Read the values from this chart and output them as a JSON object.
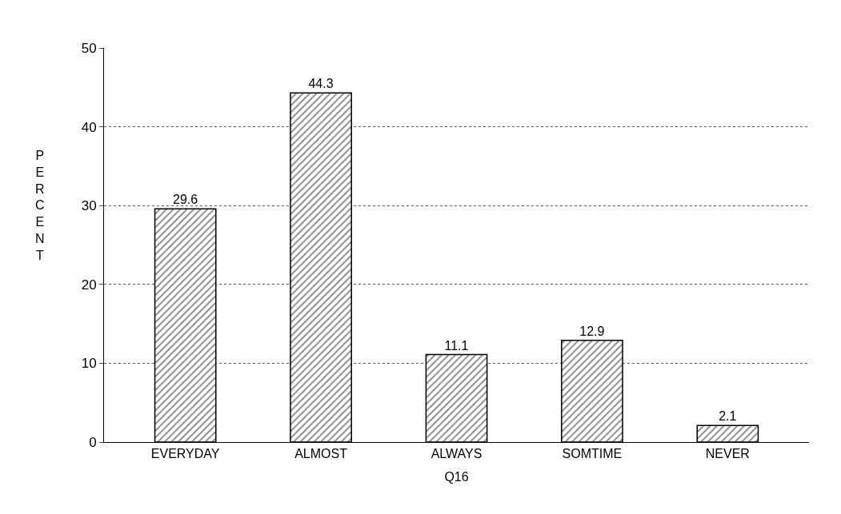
{
  "chart_data": {
    "type": "bar",
    "xlabel": "Q16",
    "ylabel": "PERCENT",
    "categories": [
      "EVERYDAY",
      "ALMOST",
      "ALWAYS",
      "SOMTIME",
      "NEVER"
    ],
    "values": [
      29.6,
      44.3,
      11.1,
      12.9,
      2.1
    ],
    "color": "#000000",
    "data_labels": true,
    "grid": "y",
    "ylim": [
      0,
      50
    ],
    "yticks": [
      0,
      10,
      20,
      30,
      40,
      50
    ]
  }
}
